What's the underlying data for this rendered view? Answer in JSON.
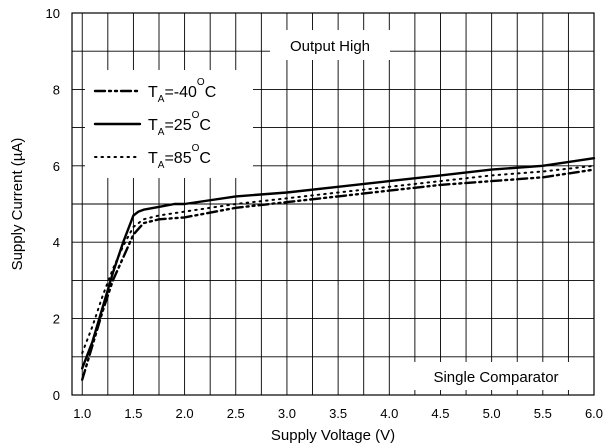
{
  "chart_data": {
    "type": "line",
    "title": "",
    "xlabel": "Supply Voltage (V)",
    "ylabel": "Supply Current  (µA)",
    "xlim": [
      0.9,
      6.0
    ],
    "ylim": [
      0,
      10
    ],
    "x_ticks": [
      "1.0",
      "1.5",
      "2.0",
      "2.5",
      "3.0",
      "3.5",
      "4.0",
      "4.5",
      "5.0",
      "5.5",
      "6.0"
    ],
    "y_ticks": [
      "0",
      "2",
      "4",
      "6",
      "8",
      "10"
    ],
    "grid": true,
    "legend_position": "top-left",
    "annotations": [
      "Output High",
      "Single Comparator"
    ],
    "series": [
      {
        "name": "T_A=-40°C",
        "legend_main": "T",
        "legend_sub": "A",
        "legend_rest": "=-40",
        "legend_sup": "O",
        "legend_unit": "C",
        "style": "dash-dot-dot",
        "x": [
          1.0,
          1.1,
          1.2,
          1.3,
          1.4,
          1.5,
          1.6,
          1.75,
          2.0,
          2.5,
          3.0,
          3.5,
          4.0,
          4.5,
          5.0,
          5.5,
          6.0
        ],
        "y": [
          0.4,
          1.3,
          2.2,
          3.0,
          3.6,
          4.2,
          4.5,
          4.6,
          4.65,
          4.9,
          5.05,
          5.2,
          5.35,
          5.5,
          5.6,
          5.7,
          5.9
        ]
      },
      {
        "name": "T_A=25°C",
        "legend_main": "T",
        "legend_sub": "A",
        "legend_rest": "=25",
        "legend_sup": "O",
        "legend_unit": "C",
        "style": "solid",
        "x": [
          1.0,
          1.1,
          1.2,
          1.3,
          1.4,
          1.5,
          1.55,
          1.6,
          1.7,
          1.8,
          1.9,
          2.0,
          2.5,
          3.0,
          3.5,
          4.0,
          4.5,
          5.0,
          5.5,
          6.0
        ],
        "y": [
          0.7,
          1.4,
          2.3,
          3.2,
          4.0,
          4.7,
          4.8,
          4.85,
          4.9,
          4.95,
          5.0,
          5.0,
          5.2,
          5.3,
          5.45,
          5.6,
          5.75,
          5.9,
          6.0,
          6.2
        ]
      },
      {
        "name": "T_A=85°C",
        "legend_main": "T",
        "legend_sub": "A",
        "legend_rest": "=85",
        "legend_sup": "O",
        "legend_unit": "C",
        "style": "dotted",
        "x": [
          1.0,
          1.1,
          1.2,
          1.3,
          1.4,
          1.5,
          1.6,
          1.75,
          2.0,
          2.5,
          3.0,
          3.5,
          4.0,
          4.5,
          5.0,
          5.5,
          6.0
        ],
        "y": [
          1.1,
          1.8,
          2.6,
          3.3,
          3.9,
          4.4,
          4.6,
          4.7,
          4.8,
          5.0,
          5.15,
          5.3,
          5.45,
          5.6,
          5.75,
          5.85,
          6.0
        ]
      }
    ]
  }
}
